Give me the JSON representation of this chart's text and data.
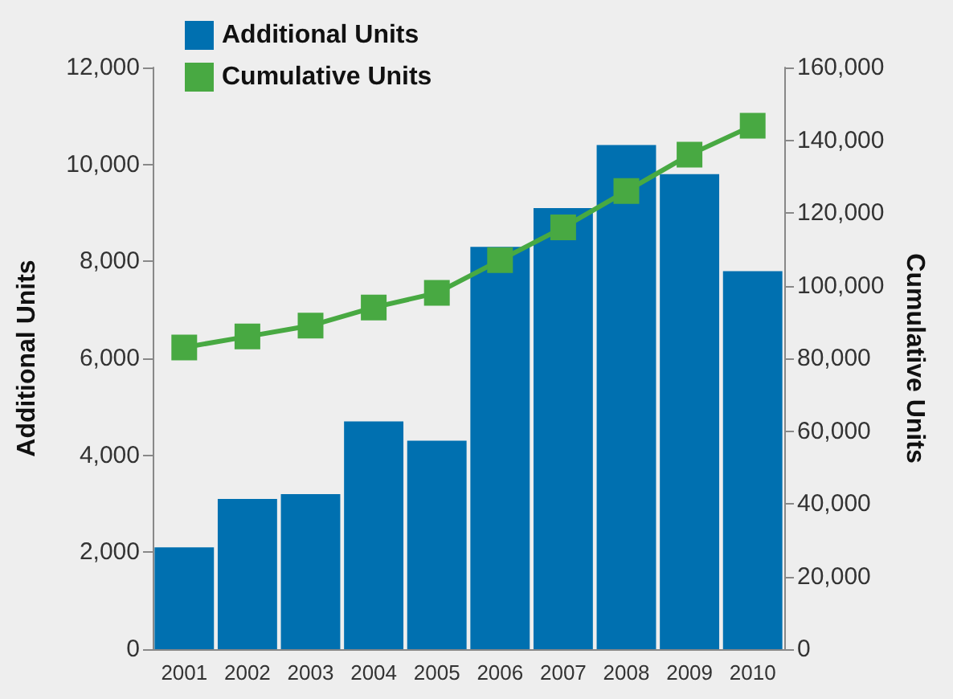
{
  "chart_data": {
    "type": "bar",
    "categories": [
      "2001",
      "2002",
      "2003",
      "2004",
      "2005",
      "2006",
      "2007",
      "2008",
      "2009",
      "2010"
    ],
    "series": [
      {
        "name": "Additional Units",
        "color": "#0070b0",
        "values": [
          2100,
          3100,
          3200,
          4700,
          4300,
          8300,
          9100,
          10400,
          9800,
          7800
        ]
      },
      {
        "name": "Cumulative Units",
        "type": "line",
        "axis": "y2",
        "color": "#48a942",
        "values": [
          83000,
          86000,
          89000,
          94000,
          98000,
          107000,
          116000,
          126000,
          136000,
          144000
        ]
      }
    ],
    "ylabel": "Additional Units",
    "y2label": "Cumulative Units",
    "ylim": [
      0,
      12000
    ],
    "yticks": [
      0,
      {
        "value": 2000,
        "label": "2,000"
      },
      {
        "value": 4000,
        "label": "4,000"
      },
      {
        "value": 6000,
        "label": "6,000"
      },
      {
        "value": 8000,
        "label": "8,000"
      },
      {
        "value": 10000,
        "label": "10,000"
      },
      {
        "value": 12000,
        "label": "12,000"
      }
    ],
    "y2lim": [
      0,
      160000
    ],
    "y2ticks": [
      0,
      {
        "value": 20000,
        "label": "20,000"
      },
      {
        "value": 40000,
        "label": "40,000"
      },
      {
        "value": 60000,
        "label": "60,000"
      },
      {
        "value": 80000,
        "label": "80,000"
      },
      {
        "value": 100000,
        "label": "100,000"
      },
      {
        "value": 120000,
        "label": "120,000"
      },
      {
        "value": 140000,
        "label": "140,000"
      },
      {
        "value": 160000,
        "label": "160,000"
      }
    ],
    "marker": "square",
    "legend": "top left",
    "grid": false
  }
}
